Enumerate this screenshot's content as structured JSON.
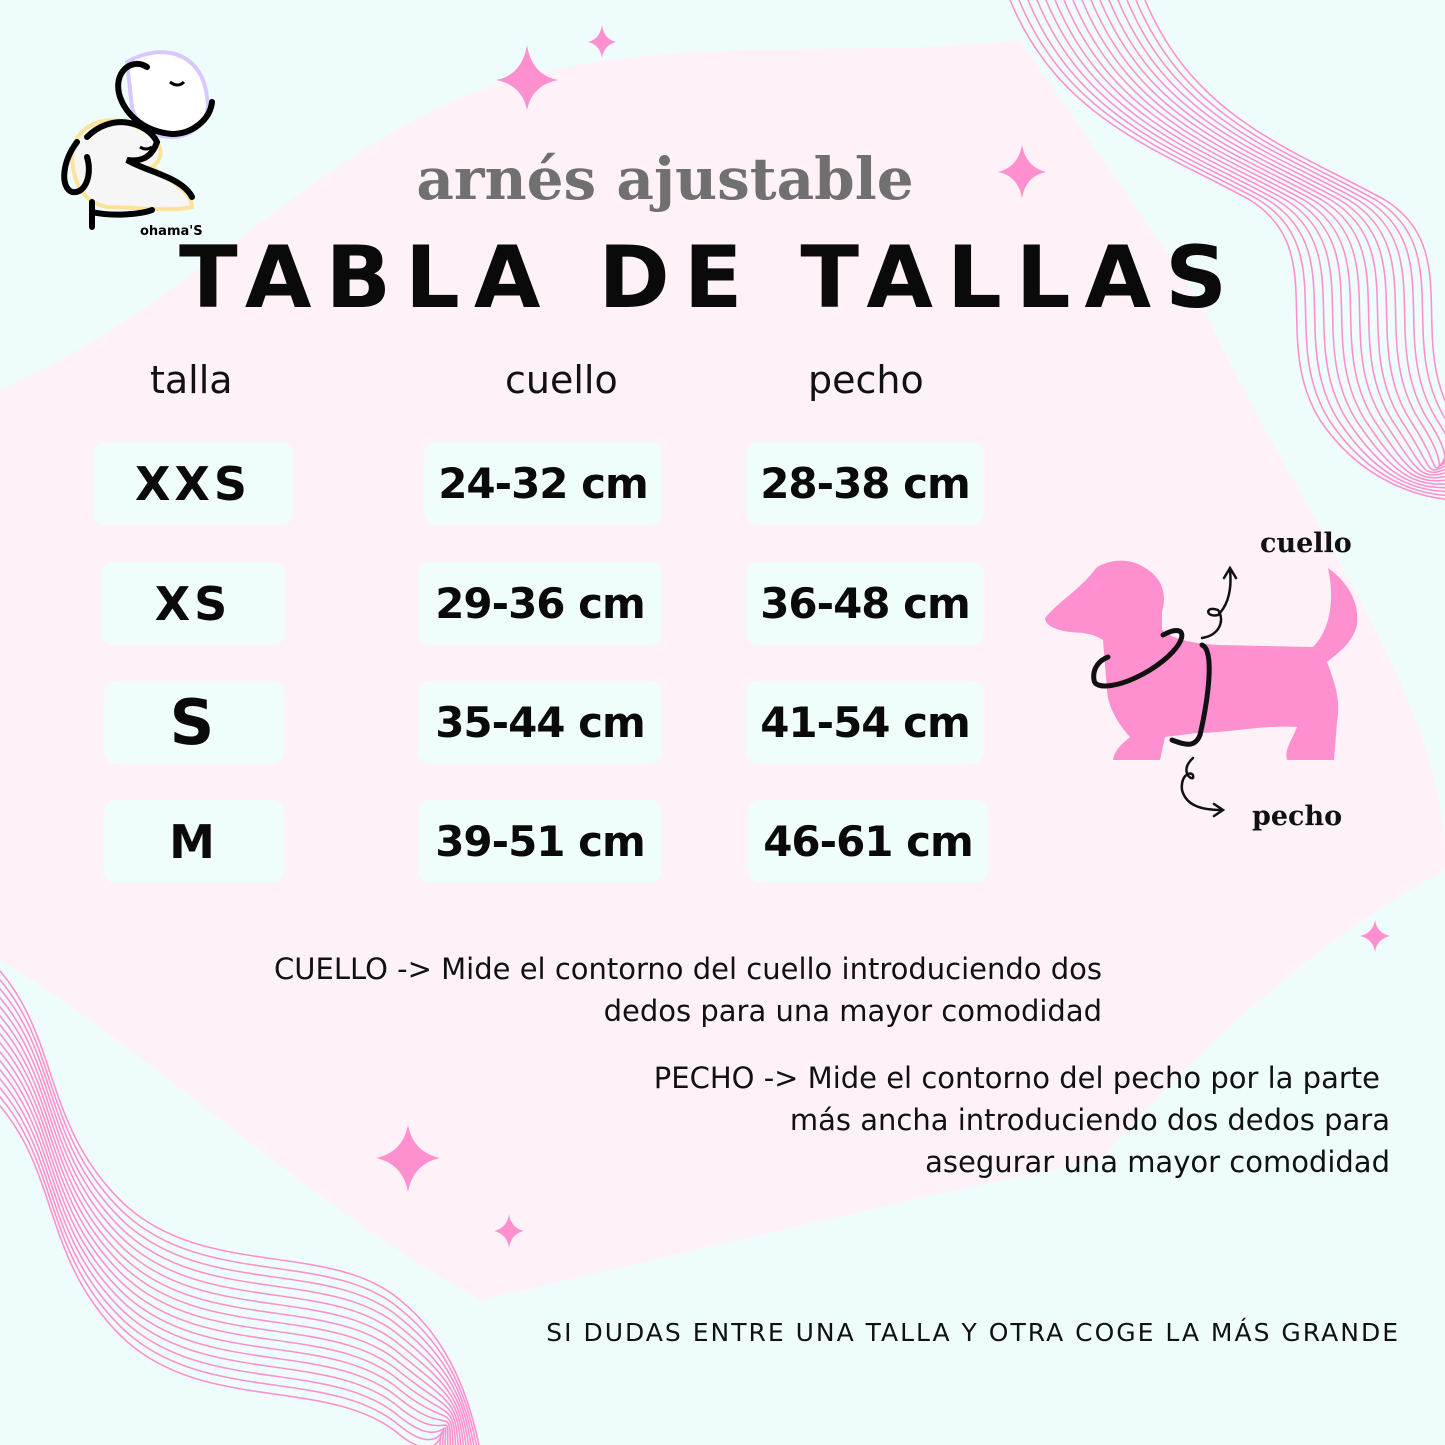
{
  "brand": {
    "logo_text": "ohama'S"
  },
  "header": {
    "subtitle": "arnés ajustable",
    "title": "TABLA DE TALLAS"
  },
  "table": {
    "columns": [
      "talla",
      "cuello",
      "pecho"
    ],
    "rows": [
      {
        "talla": "XXS",
        "cuello": "24-32 cm",
        "pecho": "28-38 cm"
      },
      {
        "talla": "XS",
        "cuello": "29-36 cm",
        "pecho": "36-48 cm"
      },
      {
        "talla": "S",
        "cuello": "35-44 cm",
        "pecho": "41-54 cm"
      },
      {
        "talla": "M",
        "cuello": "39-51 cm",
        "pecho": "46-61 cm"
      }
    ]
  },
  "diagram": {
    "neck_label": "cuello",
    "chest_label": "pecho"
  },
  "notes": {
    "cuello": [
      "CUELLO -> Mide el contorno del cuello introduciendo dos",
      "dedos para una mayor comodidad"
    ],
    "pecho": [
      "PECHO -> Mide el contorno del pecho por la parte",
      "más ancha introduciendo dos dedos para",
      "asegurar una mayor comodidad"
    ]
  },
  "footer": "SI DUDAS ENTRE UNA TALLA Y OTRA COGE LA MÁS GRANDE",
  "colors": {
    "pink": "#ff90cf",
    "pink_bg": "#fef2f8",
    "cyan_bg": "#eefdfc",
    "cell_bg": "#effdfb",
    "text": "#0a0a0a",
    "subtitle": "#707070"
  }
}
